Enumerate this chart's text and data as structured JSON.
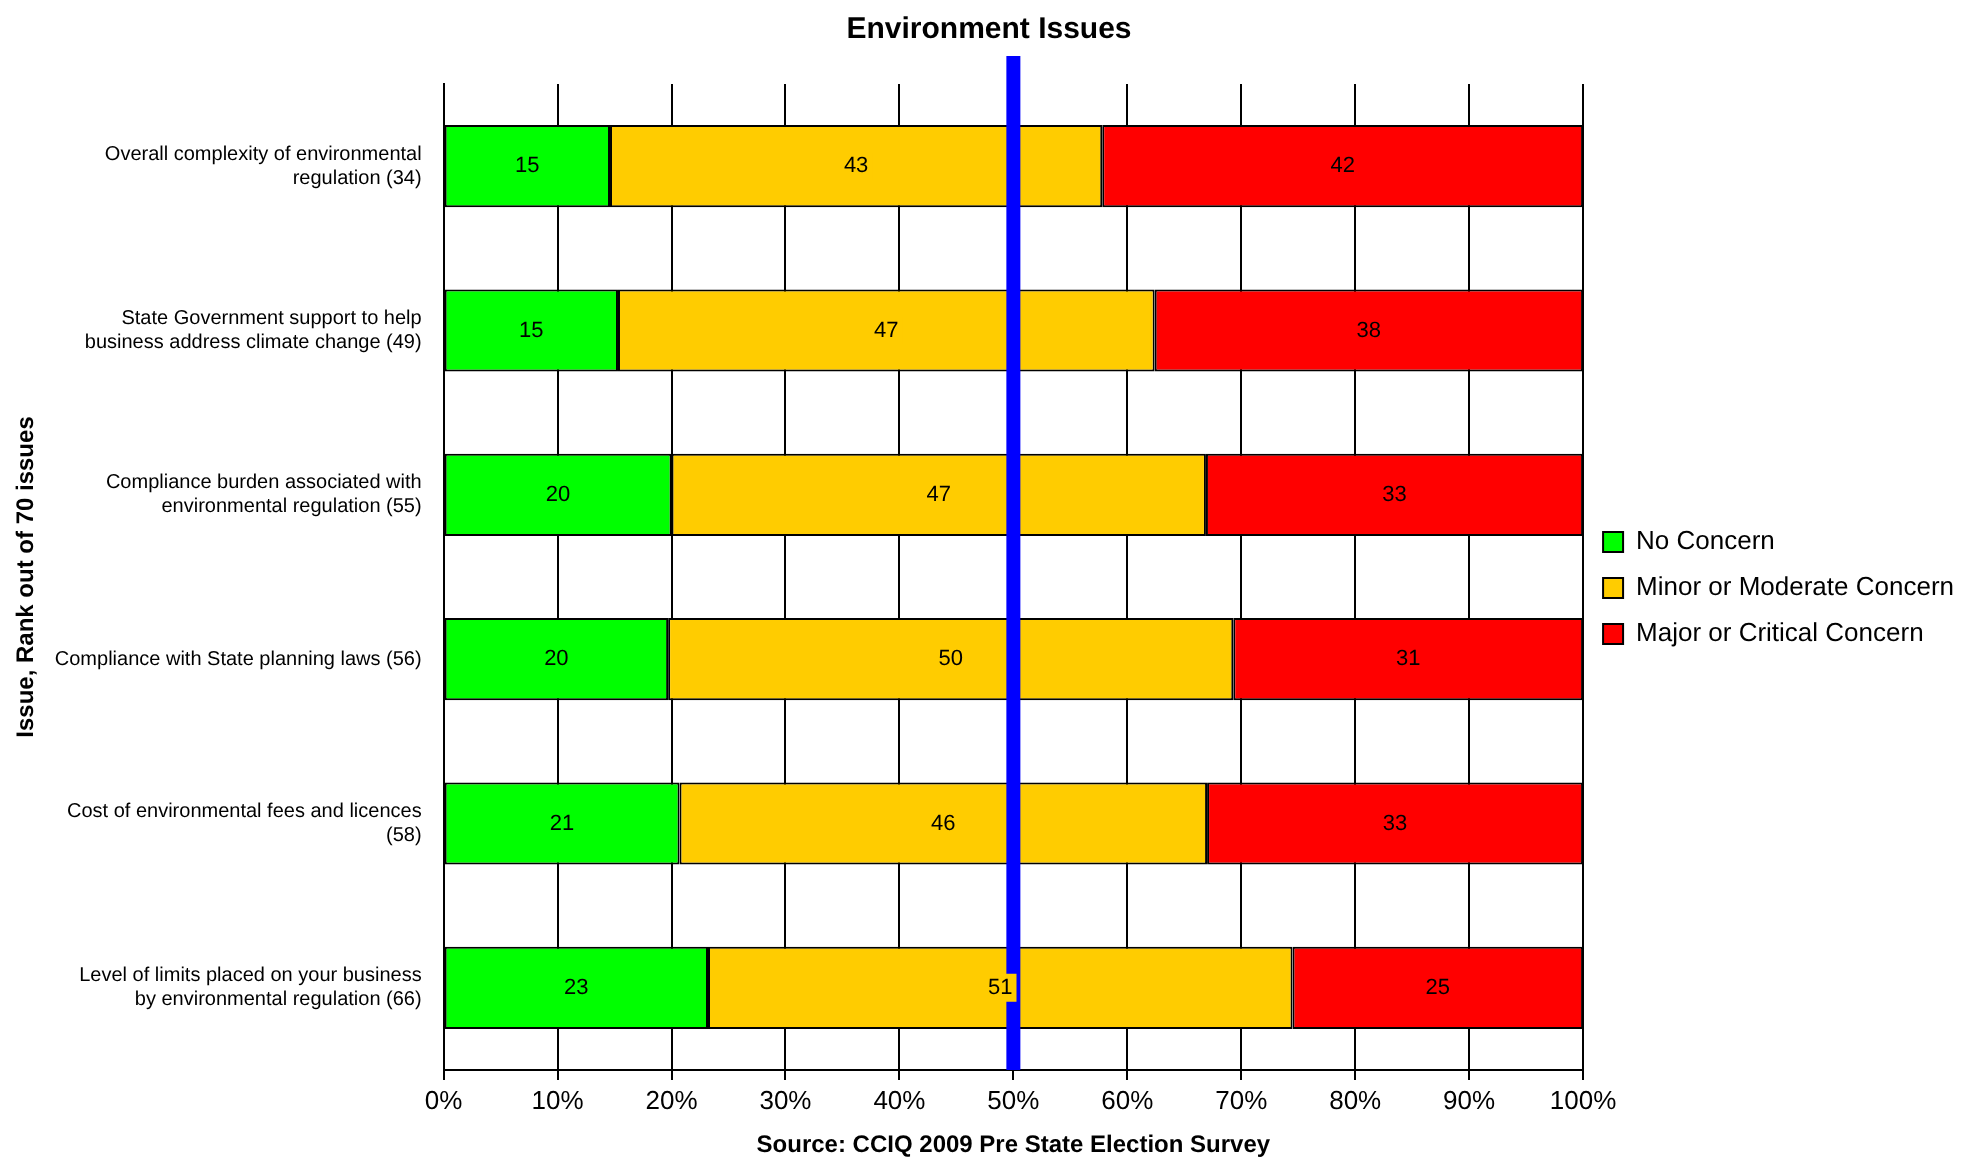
{
  "chart_data": {
    "type": "bar",
    "orientation": "horizontal",
    "stacked": true,
    "title": "Environment Issues",
    "xlabel": "Source: CCIQ 2009 Pre State Election Survey",
    "ylabel": "Issue, Rank out of 70 issues",
    "categories": [
      "Overall complexity of environmental regulation (34)",
      "State Government support to help business address climate change (49)",
      "Compliance burden associated with environmental regulation (55)",
      "Compliance with State planning laws (56)",
      "Cost of environmental fees and licences (58)",
      "Level of limits placed on your business by environmental regulation (66)"
    ],
    "series": [
      {
        "name": "No Concern",
        "color": "#00ff00",
        "values": [
          14.6,
          15.3,
          20,
          19.7,
          20.7,
          23.2
        ],
        "value_labels": [
          "15",
          "15",
          "20",
          "20",
          "21",
          "23"
        ]
      },
      {
        "name": "Minor or Moderate Concern",
        "color": "#ffcc00",
        "values": [
          43.2,
          47.1,
          46.9,
          49.6,
          46.3,
          51.3
        ],
        "value_labels": [
          "43",
          "47",
          "47",
          "50",
          "46",
          "51"
        ]
      },
      {
        "name": "Major or Critical Concern",
        "color": "#ff0000",
        "values": [
          42.2,
          37.6,
          33.1,
          30.7,
          33,
          25.5
        ],
        "value_labels": [
          "42",
          "38",
          "33",
          "31",
          "33",
          "25"
        ]
      }
    ],
    "xlim": [
      0,
      100
    ],
    "xticks": [
      {
        "value": 0,
        "label": "0%"
      },
      {
        "value": 10,
        "label": "10%"
      },
      {
        "value": 20,
        "label": "20%"
      },
      {
        "value": 30,
        "label": "30%"
      },
      {
        "value": 40,
        "label": "40%"
      },
      {
        "value": 50,
        "label": "50%"
      },
      {
        "value": 60,
        "label": "60%"
      },
      {
        "value": 70,
        "label": "70%"
      },
      {
        "value": 80,
        "label": "80%"
      },
      {
        "value": 90,
        "label": "90%"
      },
      {
        "value": 100,
        "label": "100%"
      }
    ],
    "ref_lines": [
      {
        "axis": "x",
        "value": 50,
        "color": "#0000ff"
      }
    ],
    "grid": "x",
    "legend": "right"
  }
}
